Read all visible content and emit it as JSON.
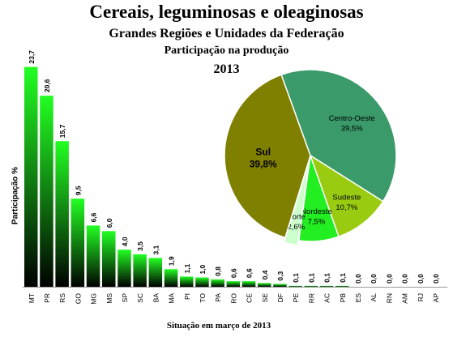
{
  "header": {
    "title": "Cereais, leguminosas e oleaginosas",
    "subtitle": "Grandes Regiões e Unidades da Federação",
    "subtitle2": "Participação na produção",
    "year": "2013"
  },
  "chart_data": [
    {
      "type": "bar",
      "ylabel": "Participação %",
      "xlabel": "Situação em março de 2013",
      "categories": [
        "MT",
        "PR",
        "RS",
        "GO",
        "MG",
        "MS",
        "SP",
        "SC",
        "BA",
        "MA",
        "PI",
        "TO",
        "PA",
        "RO",
        "CE",
        "SE",
        "DF",
        "PE",
        "RR",
        "AC",
        "PB",
        "ES",
        "AL",
        "RN",
        "AM",
        "RJ",
        "AP"
      ],
      "values": [
        23.7,
        20.6,
        15.7,
        9.5,
        6.6,
        6.0,
        4.0,
        3.5,
        3.1,
        1.9,
        1.1,
        1.0,
        0.8,
        0.6,
        0.6,
        0.4,
        0.3,
        0.1,
        0.1,
        0.1,
        0.1,
        0.0,
        0.0,
        0.0,
        0.0,
        0.0,
        0.0
      ],
      "value_labels": [
        "23,7",
        "20,6",
        "15,7",
        "9,5",
        "6,6",
        "6,0",
        "4,0",
        "3,5",
        "3,1",
        "1,9",
        "1,1",
        "1,0",
        "0,8",
        "0,6",
        "0,6",
        "0,4",
        "0,3",
        "0,1",
        "0,1",
        "0,1",
        "0,1",
        "0,0",
        "0,0",
        "0,0",
        "0,0",
        "0,0",
        "0,0"
      ],
      "colors": {
        "bar_top": "#22ff22",
        "bar_bottom": "#000000"
      }
    },
    {
      "type": "pie",
      "slices": [
        {
          "name": "Centro-Oeste",
          "value": 39.5,
          "label": "39,5%",
          "color": "#3a9a6a"
        },
        {
          "name": "Sudeste",
          "value": 10.7,
          "label": "10,7%",
          "color": "#99cc11"
        },
        {
          "name": "Nordeste",
          "value": 7.5,
          "label": "7,5%",
          "color": "#22ee22"
        },
        {
          "name": "Norte",
          "value": 2.6,
          "label": "2,6%",
          "color": "#ccffcc"
        },
        {
          "name": "Sul",
          "value": 39.8,
          "label": "39,8%",
          "color": "#808000"
        }
      ]
    }
  ]
}
